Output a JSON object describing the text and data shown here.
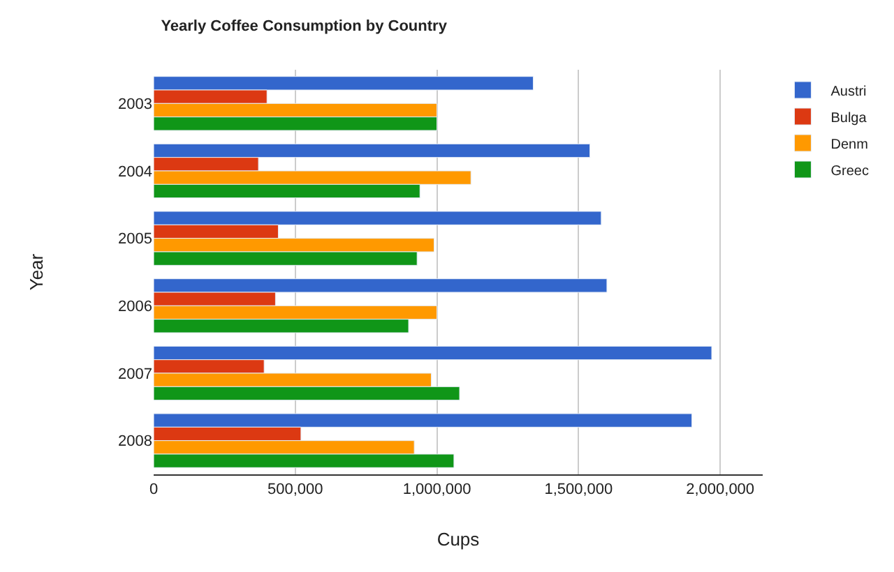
{
  "chart_data": {
    "type": "bar",
    "orientation": "horizontal",
    "title": "Yearly Coffee Consumption by Country",
    "xlabel": "Cups",
    "ylabel": "Year",
    "categories": [
      "2003",
      "2004",
      "2005",
      "2006",
      "2007",
      "2008"
    ],
    "series": [
      {
        "name": "Austri",
        "color": "#3366cc",
        "values": [
          1340000,
          1540000,
          1580000,
          1600000,
          1970000,
          1900000
        ]
      },
      {
        "name": "Bulga",
        "color": "#dc3912",
        "values": [
          400000,
          370000,
          440000,
          430000,
          390000,
          520000
        ]
      },
      {
        "name": "Denm",
        "color": "#ff9900",
        "values": [
          1000000,
          1120000,
          990000,
          1000000,
          980000,
          920000
        ]
      },
      {
        "name": "Greec",
        "color": "#109618",
        "values": [
          1000000,
          940000,
          930000,
          900000,
          1080000,
          1060000
        ]
      }
    ],
    "xlim": [
      0,
      2150000
    ],
    "xticks": [
      {
        "value": 0,
        "label": "0"
      },
      {
        "value": 500000,
        "label": "500,000"
      },
      {
        "value": 1000000,
        "label": "1,000,000"
      },
      {
        "value": 1500000,
        "label": "1,500,000"
      },
      {
        "value": 2000000,
        "label": "2,000,000"
      }
    ],
    "grid": "x",
    "legend": "top right"
  }
}
